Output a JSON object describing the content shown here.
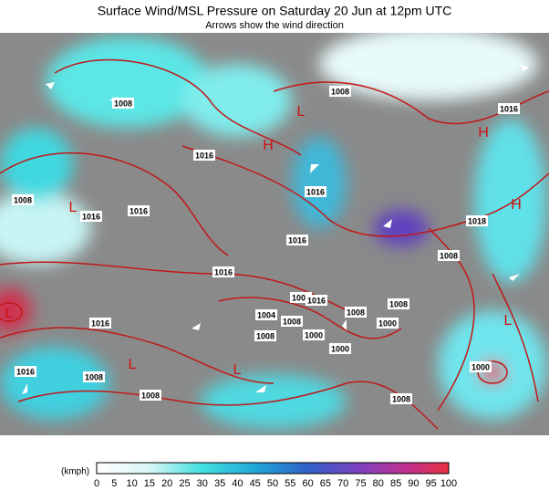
{
  "header": {
    "title": "Surface Wind/MSL Pressure on Saturday 20 Jun at 12pm UTC",
    "subtitle": "Arrows show the wind direction"
  },
  "map": {
    "isobar_labels": [
      "1008",
      "1008",
      "1016",
      "1016",
      "1016",
      "1008",
      "1016",
      "1016",
      "1016",
      "1016",
      "1018",
      "1008",
      "1016",
      "1008",
      "1016",
      "1008",
      "1008",
      "1000",
      "1000",
      "1004",
      "1008",
      "1000",
      "1008",
      "1016",
      "1008",
      "1008",
      "1008",
      "1000"
    ],
    "pressure_markers": [
      "L",
      "L",
      "L",
      "L",
      "H",
      "H",
      "L",
      "L",
      "H"
    ]
  },
  "legend": {
    "unit": "(kmph)",
    "ticks": [
      "0",
      "5",
      "10",
      "15",
      "20",
      "25",
      "30",
      "35",
      "40",
      "45",
      "50",
      "55",
      "60",
      "65",
      "70",
      "75",
      "80",
      "85",
      "90",
      "95",
      "100"
    ]
  }
}
